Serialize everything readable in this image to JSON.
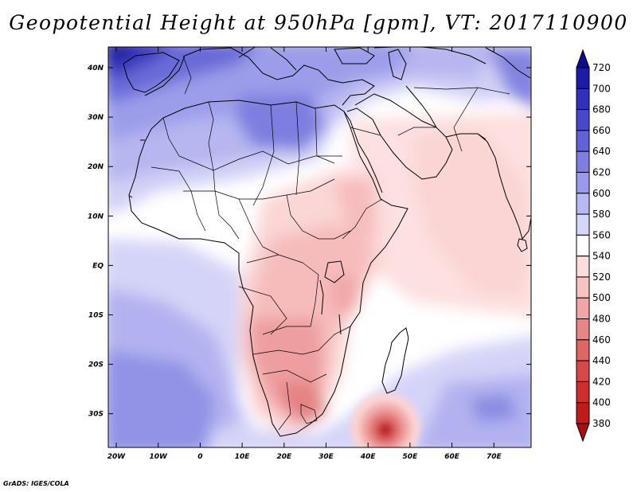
{
  "title": "Geopotential Height at 950hPa [gpm], VT: 2017110900",
  "credit": "GrADS: IGES/COLA",
  "map": {
    "variable": "Geopotential Height",
    "level": "950hPa",
    "units": "gpm",
    "valid_time": "2017110900",
    "lon_ticks": [
      "20W",
      "10W",
      "0",
      "10E",
      "20E",
      "30E",
      "40E",
      "50E",
      "60E",
      "70E"
    ],
    "lat_ticks": [
      "40N",
      "30N",
      "20N",
      "10N",
      "EQ",
      "10S",
      "20S",
      "30S"
    ]
  },
  "colorbar": {
    "levels": [
      "720",
      "700",
      "680",
      "660",
      "640",
      "620",
      "600",
      "580",
      "560",
      "540",
      "520",
      "500",
      "480",
      "460",
      "440",
      "420",
      "400",
      "380"
    ],
    "colors": [
      "#0e0c8e",
      "#1c1ca6",
      "#3030bc",
      "#4848cc",
      "#6262d8",
      "#7e7ee2",
      "#9a9aec",
      "#b8b8f2",
      "#d6d6f8",
      "#ffffff",
      "#fcdcdc",
      "#f7c2c2",
      "#f0a6a6",
      "#e88686",
      "#e06666",
      "#d84848",
      "#ce2e2e",
      "#be1c1c",
      "#a80e0e"
    ]
  }
}
